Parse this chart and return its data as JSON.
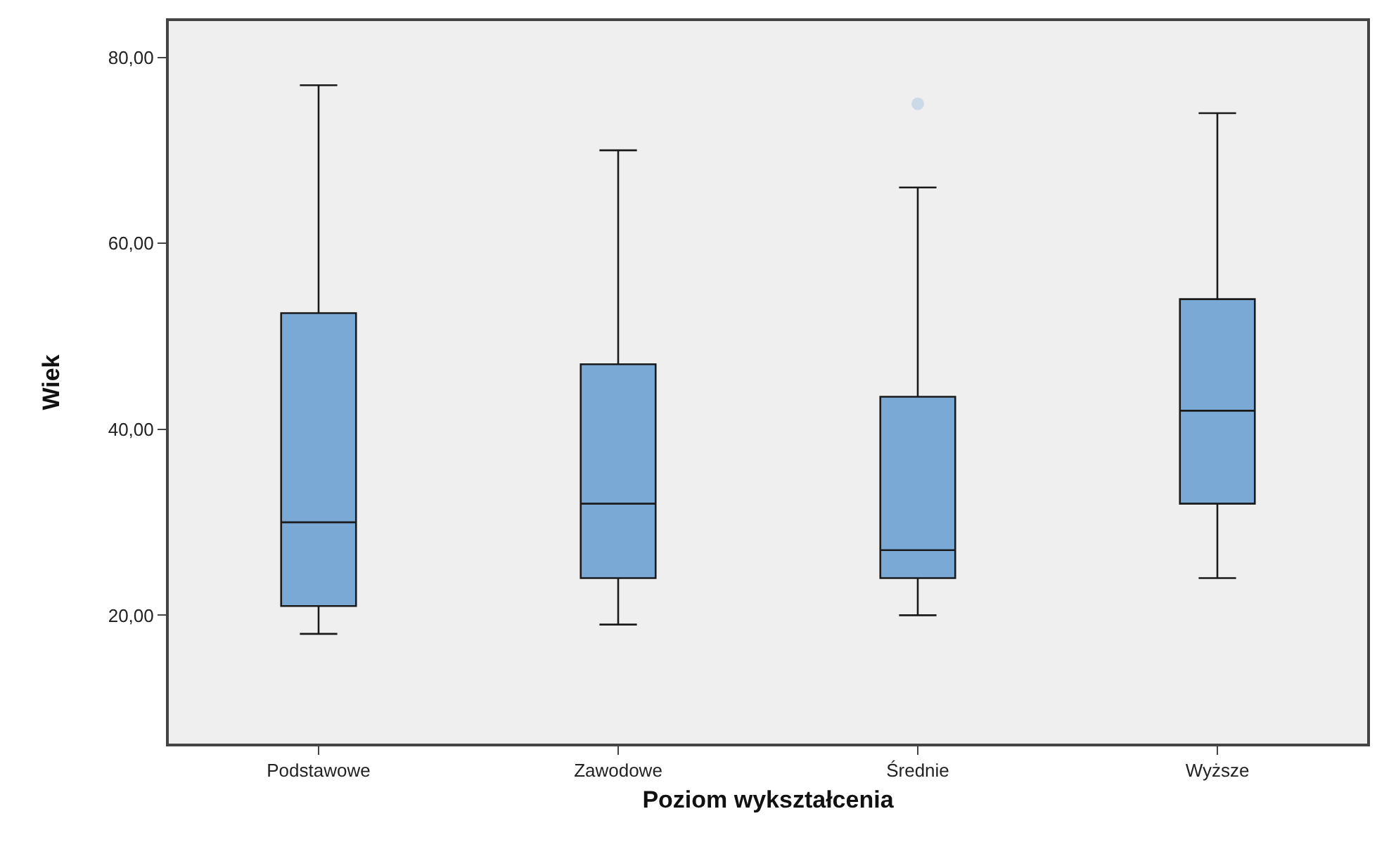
{
  "chart_data": {
    "type": "box",
    "xlabel": "Poziom wykształcenia",
    "ylabel": "Wiek",
    "categories": [
      "Podstawowe",
      "Zawodowe",
      "Średnie",
      "Wyższe"
    ],
    "series": [
      {
        "color": "#7aa9d6",
        "boxes": [
          {
            "low": 18,
            "q1": 21,
            "median": 30,
            "q3": 52.5,
            "high": 77
          },
          {
            "low": 19,
            "q1": 24,
            "median": 32,
            "q3": 47,
            "high": 70
          },
          {
            "low": 20,
            "q1": 24,
            "median": 27,
            "q3": 43.5,
            "high": 66,
            "outliers": [
              75
            ]
          },
          {
            "low": 24,
            "q1": 32,
            "median": 42,
            "q3": 54,
            "high": 74
          }
        ]
      }
    ],
    "ylim": [
      6.2,
      83.9
    ],
    "yticks": [
      {
        "value": 20,
        "label": "20,00"
      },
      {
        "value": 40,
        "label": "40,00"
      },
      {
        "value": 60,
        "label": "60,00"
      },
      {
        "value": 80,
        "label": "80,00"
      }
    ],
    "grid": false
  }
}
